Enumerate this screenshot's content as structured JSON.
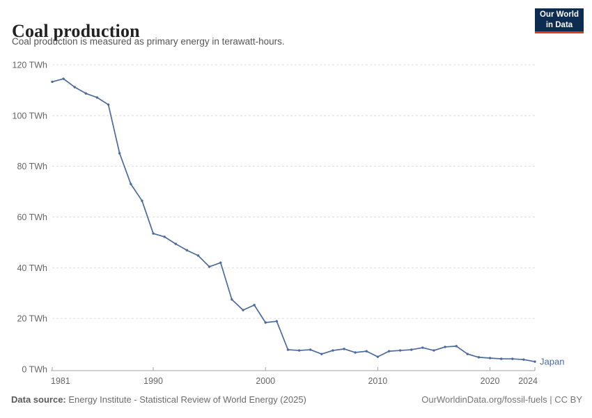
{
  "header": {
    "title": "Coal production",
    "subtitle": "Coal production is measured as primary energy in terawatt-hours.",
    "logo": {
      "line1": "Our World",
      "line2": "in Data"
    }
  },
  "chart_data": {
    "type": "line",
    "title": "Coal production",
    "unit": "TWh",
    "xlim": [
      1981,
      2024
    ],
    "ylim": [
      0,
      120
    ],
    "xticks": [
      1981,
      1990,
      2000,
      2010,
      2020,
      2024
    ],
    "yticks": [
      0,
      20,
      40,
      60,
      80,
      100,
      120
    ],
    "ytick_format": "{v} TWh",
    "grid": "dashed-horizontal",
    "legend": "end-of-line-label",
    "series": [
      {
        "name": "Japan",
        "color": "#4C6A9C",
        "x": [
          1981,
          1982,
          1983,
          1984,
          1985,
          1986,
          1987,
          1988,
          1989,
          1990,
          1991,
          1992,
          1993,
          1994,
          1995,
          1996,
          1997,
          1998,
          1999,
          2000,
          2001,
          2002,
          2003,
          2004,
          2005,
          2006,
          2007,
          2008,
          2009,
          2010,
          2011,
          2012,
          2013,
          2014,
          2015,
          2016,
          2017,
          2018,
          2019,
          2020,
          2021,
          2022,
          2023,
          2024
        ],
        "values": [
          113.3,
          114.5,
          111.2,
          108.7,
          107.1,
          104.3,
          85.1,
          73.0,
          66.4,
          53.5,
          52.2,
          49.4,
          46.9,
          44.8,
          40.4,
          42.0,
          27.5,
          23.3,
          25.3,
          18.4,
          18.9,
          7.7,
          7.4,
          7.7,
          6.0,
          7.4,
          8.0,
          6.6,
          7.1,
          4.9,
          7.1,
          7.4,
          7.7,
          8.5,
          7.4,
          8.8,
          9.1,
          6.0,
          4.7,
          4.4,
          4.1,
          4.1,
          3.8,
          3.0
        ]
      }
    ]
  },
  "footer": {
    "source_label": "Data source:",
    "source_text": " Energy Institute - Statistical Review of World Energy (2025)",
    "right_text": "OurWorldinData.org/fossil-fuels | CC BY"
  },
  "colors": {
    "line": "#4C6A9C",
    "grid": "#dcdcdc",
    "axis": "#a0a0a0",
    "tick_label": "#666666",
    "logo_bg": "#0d2c52",
    "logo_red": "#dc3a24"
  }
}
